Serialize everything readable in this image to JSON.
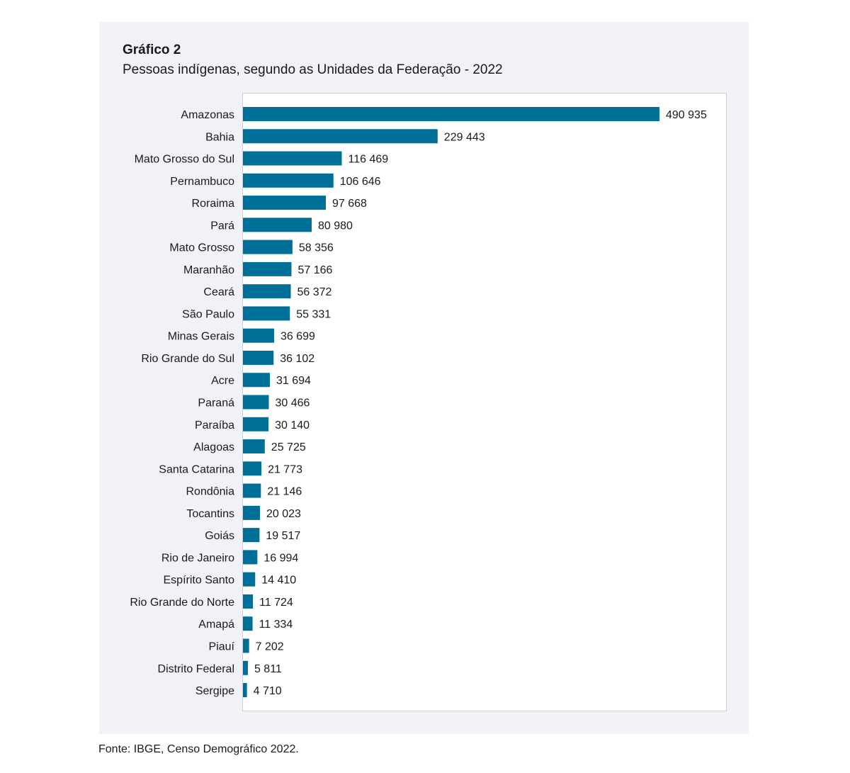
{
  "figure": {
    "label": "Gráfico 2",
    "title": "Pessoas indígenas, segundo as Unidades da Federação - 2022",
    "source": "Fonte: IBGE, Censo Demográfico 2022."
  },
  "colors": {
    "bar": "#006f98",
    "panel_background": "#f0f2f7",
    "plot_background": "#ffffff",
    "plot_border": "#c9cfe3",
    "text": "#1a1a1a"
  },
  "chart_data": {
    "type": "bar",
    "orientation": "horizontal",
    "title": "Pessoas indígenas, segundo as Unidades da Federação - 2022",
    "subtitle": "Gráfico 2",
    "xlabel": "",
    "ylabel": "",
    "grid": false,
    "legend": "none",
    "xlim": [
      0,
      490935
    ],
    "categories": [
      "Amazonas",
      "Bahia",
      "Mato Grosso do Sul",
      "Pernambuco",
      "Roraima",
      "Pará",
      "Mato Grosso",
      "Maranhão",
      "Ceará",
      "São Paulo",
      "Minas Gerais",
      "Rio Grande do Sul",
      "Acre",
      "Paraná",
      "Paraíba",
      "Alagoas",
      "Santa Catarina",
      "Rondônia",
      "Tocantins",
      "Goiás",
      "Rio de Janeiro",
      "Espírito Santo",
      "Rio Grande do Norte",
      "Amapá",
      "Piauí",
      "Distrito Federal",
      "Sergipe"
    ],
    "values": [
      490935,
      229443,
      116469,
      106646,
      97668,
      80980,
      58356,
      57166,
      56372,
      55331,
      36699,
      36102,
      31694,
      30466,
      30140,
      25725,
      21773,
      21146,
      20023,
      19517,
      16994,
      14410,
      11724,
      11334,
      7202,
      5811,
      4710
    ],
    "value_labels": [
      "490 935",
      "229 443",
      "116 469",
      "106 646",
      "97 668",
      "80 980",
      "58 356",
      "57 166",
      "56 372",
      "55 331",
      "36 699",
      "36 102",
      "31 694",
      "30 466",
      "30 140",
      "25 725",
      "21 773",
      "21 146",
      "20 023",
      "19 517",
      "16 994",
      "14 410",
      "11 724",
      "11 334",
      "7 202",
      "5 811",
      "4 710"
    ],
    "source": "Fonte: IBGE, Censo Demográfico 2022."
  }
}
